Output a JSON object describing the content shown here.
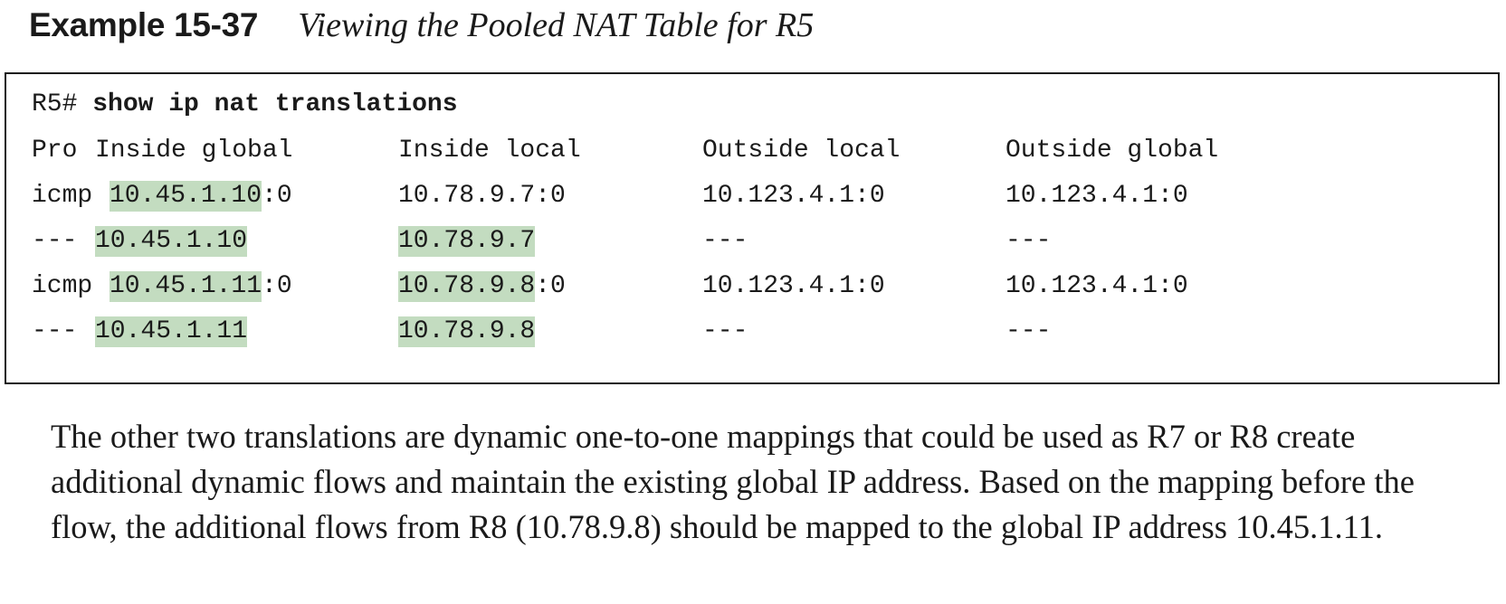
{
  "caption": {
    "label": "Example 15-37",
    "title": "Viewing the Pooled NAT Table for R5"
  },
  "terminal": {
    "prompt": "R5#",
    "command": "show ip nat translations",
    "columns": [
      "Pro",
      "Inside global",
      "Inside local",
      "Outside local",
      "Outside global"
    ],
    "rows": [
      {
        "pro": "icmp",
        "inside_global": "10.45.1.10",
        "inside_global_port": ":0",
        "inside_local": "10.78.9.7:0",
        "inside_local_port": "",
        "outside_local": "10.123.4.1:0",
        "outside_global": "10.123.4.1:0"
      },
      {
        "pro": "---",
        "inside_global": "10.45.1.10",
        "inside_global_port": "",
        "inside_local": "10.78.9.7",
        "inside_local_port": "",
        "outside_local": "---",
        "outside_global": "---"
      },
      {
        "pro": "icmp",
        "inside_global": "10.45.1.11",
        "inside_global_port": ":0",
        "inside_local": "10.78.9.8",
        "inside_local_port": ":0",
        "outside_local": "10.123.4.1:0",
        "outside_global": "10.123.4.1:0"
      },
      {
        "pro": "---",
        "inside_global": "10.45.1.11",
        "inside_global_port": "",
        "inside_local": "10.78.9.8",
        "inside_local_port": "",
        "outside_local": "---",
        "outside_global": "---"
      }
    ]
  },
  "paragraph": "The other two translations are dynamic one-to-one mappings that could be used as R7 or R8 create additional dynamic flows and maintain the existing global IP address. Based on the mapping before the flow, the additional flows from R8 (10.78.9.8) should be mapped to the global IP address 10.45.1.11.",
  "colors": {
    "highlight": "#c3dcc0",
    "text": "#1a1a1a"
  }
}
